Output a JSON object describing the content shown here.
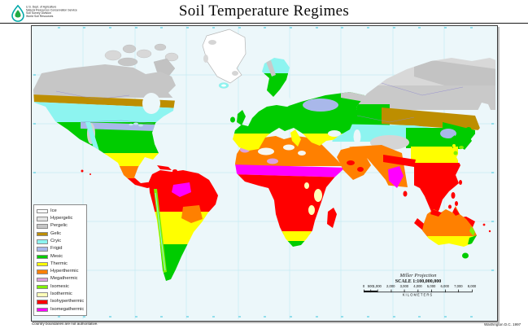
{
  "header": {
    "agency_line1": "U.S. Dept. of Agriculture",
    "agency_line2": "Natural Resources Conservation Service",
    "agency_line3": "Soil Survey Division",
    "agency_line4": "World Soil Resources",
    "title": "Soil Temperature Regimes"
  },
  "map": {
    "ocean_color": "#ecf7fa",
    "graticule_color": "#c6ebf2"
  },
  "legend": {
    "items": [
      {
        "label": "Ice",
        "color": "#ffffff"
      },
      {
        "label": "Hypergelic",
        "color": "#e4e4e4"
      },
      {
        "label": "Pergelic",
        "color": "#c6c6c6"
      },
      {
        "label": "Gelic",
        "color": "#bd8e00"
      },
      {
        "label": "Cryic",
        "color": "#8df4f0"
      },
      {
        "label": "Frigid",
        "color": "#a9b8ea"
      },
      {
        "label": "Mesic",
        "color": "#00cc00"
      },
      {
        "label": "Thermic",
        "color": "#ffff00"
      },
      {
        "label": "Hyperthermic",
        "color": "#ff8000"
      },
      {
        "label": "Megathermic",
        "color": "#dda0dd"
      },
      {
        "label": "Isomesic",
        "color": "#80f000"
      },
      {
        "label": "Isothermic",
        "color": "#ffffb8"
      },
      {
        "label": "Isohyperthermic",
        "color": "#ff0000"
      },
      {
        "label": "Isomegathermic",
        "color": "#ff00ff"
      }
    ]
  },
  "scale_block": {
    "projection": "Miller Projection",
    "scale": "SCALE 1:100,000,000",
    "unit": "KILOMETERS",
    "total_km": 8000,
    "ticks": [
      {
        "km": 0,
        "label": "0"
      },
      {
        "km": 500,
        "label": "500"
      },
      {
        "km": 1000,
        "label": "1,000"
      },
      {
        "km": 2000,
        "label": "2,000"
      },
      {
        "km": 3000,
        "label": "3,000"
      },
      {
        "km": 4000,
        "label": "4,000"
      },
      {
        "km": 5000,
        "label": "5,000"
      },
      {
        "km": 6000,
        "label": "6,000"
      },
      {
        "km": 7000,
        "label": "7,000"
      },
      {
        "km": 8000,
        "label": "8,000"
      }
    ]
  },
  "footer": {
    "left": "Country boundaries are not authoritative.",
    "right": "Washington D.C.  1997"
  }
}
